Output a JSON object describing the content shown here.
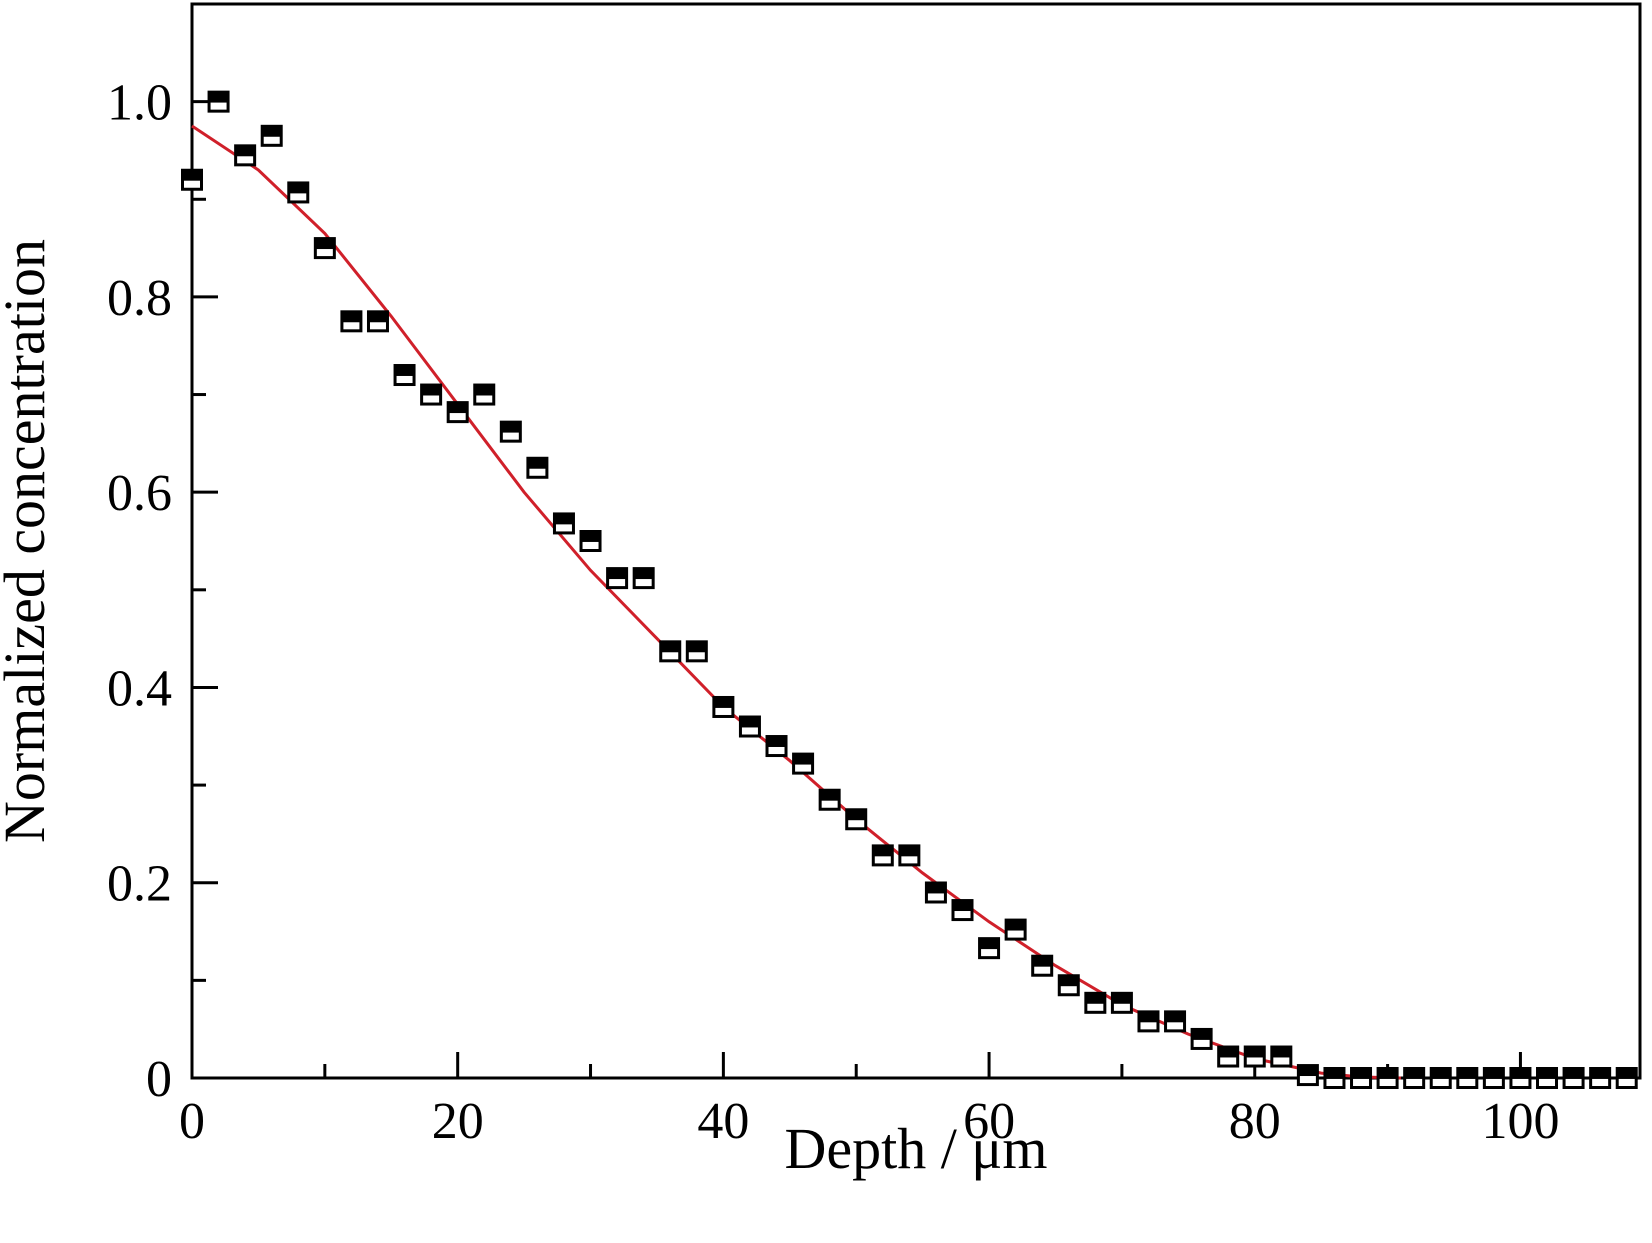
{
  "chart_data": {
    "type": "scatter",
    "xlabel": "Depth / μm",
    "ylabel": "Normalized concentration",
    "xlim": [
      0,
      109
    ],
    "ylim": [
      0,
      1.1
    ],
    "x_ticks": [
      0,
      20,
      40,
      60,
      80,
      100
    ],
    "x_tick_labels": [
      "0",
      "20",
      "40",
      "60",
      "80",
      "100"
    ],
    "x_minor_ticks": [
      10,
      30,
      50,
      70,
      90
    ],
    "y_ticks": [
      0,
      0.2,
      0.4,
      0.6,
      0.8,
      1.0
    ],
    "y_tick_labels": [
      "0",
      "0.2",
      "0.4",
      "0.6",
      "0.8",
      "1.0"
    ],
    "y_minor_ticks": [
      0.1,
      0.3,
      0.5,
      0.7,
      0.9
    ],
    "grid": false,
    "legend": "none",
    "marker": "half-filled-square",
    "marker_color": "#000000",
    "fit_color": "#d0202a",
    "series": [
      {
        "kind": "points",
        "x": [
          0,
          2,
          4,
          6,
          8,
          10,
          12,
          14,
          16,
          18,
          20,
          22,
          24,
          26,
          28,
          30,
          32,
          34,
          36,
          38,
          40,
          42,
          44,
          46,
          48,
          50,
          52,
          54,
          56,
          58,
          60,
          62,
          64,
          66,
          68,
          70,
          72,
          74,
          76,
          78,
          80,
          82,
          84,
          86,
          88,
          90,
          92,
          94,
          96,
          98,
          100,
          102,
          104,
          106,
          108
        ],
        "y": [
          0.92,
          1.0,
          0.945,
          0.965,
          0.907,
          0.85,
          0.775,
          0.775,
          0.72,
          0.7,
          0.682,
          0.7,
          0.662,
          0.625,
          0.568,
          0.55,
          0.512,
          0.512,
          0.437,
          0.437,
          0.38,
          0.36,
          0.34,
          0.322,
          0.285,
          0.265,
          0.228,
          0.228,
          0.19,
          0.172,
          0.133,
          0.152,
          0.115,
          0.095,
          0.077,
          0.077,
          0.058,
          0.058,
          0.04,
          0.022,
          0.022,
          0.022,
          0.003,
          0.0,
          0.0,
          0.0,
          0.0,
          0.0,
          0.0,
          0.0,
          0.0,
          0.0,
          0.0,
          0.0,
          0.0
        ]
      },
      {
        "kind": "fit-line",
        "x": [
          0,
          5,
          10,
          15,
          20,
          25,
          30,
          35,
          40,
          45,
          50,
          55,
          60,
          65,
          70,
          75,
          80,
          85,
          88,
          91
        ],
        "y": [
          0.975,
          0.93,
          0.865,
          0.78,
          0.69,
          0.6,
          0.52,
          0.45,
          0.38,
          0.325,
          0.265,
          0.21,
          0.16,
          0.115,
          0.075,
          0.045,
          0.02,
          0.005,
          0.001,
          0.0
        ]
      }
    ]
  }
}
